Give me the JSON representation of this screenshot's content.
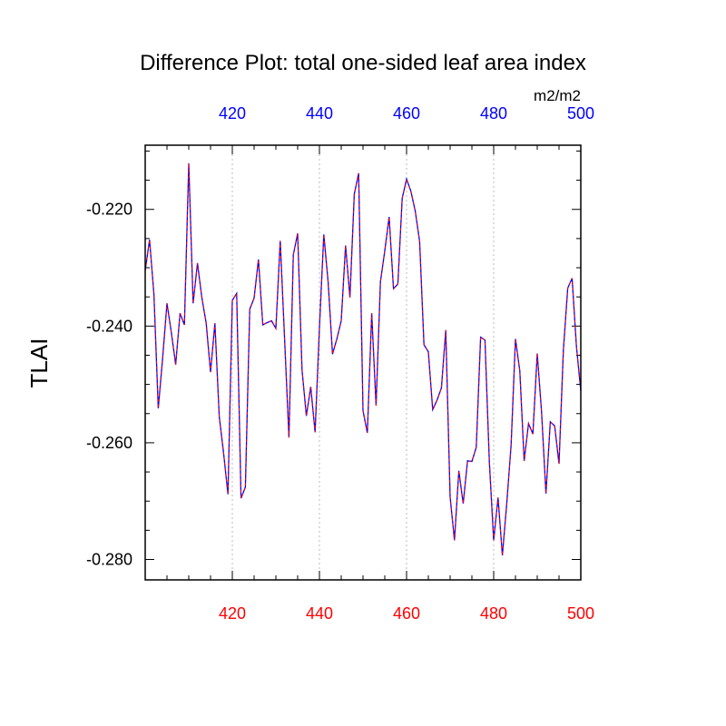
{
  "chart_data": {
    "type": "line",
    "title": "Difference Plot: total one-sided leaf area index",
    "units_label": "m2/m2",
    "ylabel": "TLAI",
    "xlabel": "",
    "xlim": [
      400,
      500
    ],
    "ylim": [
      -0.2835,
      -0.209
    ],
    "x_ticks": [
      420,
      440,
      460,
      480,
      500
    ],
    "x_tick_labels": [
      "420",
      "440",
      "460",
      "480",
      "500"
    ],
    "y_ticks": [
      -0.22,
      -0.24,
      -0.26,
      -0.28
    ],
    "y_tick_labels": [
      "-0.220",
      "-0.240",
      "-0.260",
      "-0.280"
    ],
    "grid": "vertical dotted at major x ticks",
    "colors": {
      "bottom_axis_labels": "#ff0000",
      "top_axis_labels": "#0000ff",
      "line_primary": "#0000ff",
      "line_secondary": "#ff0000",
      "axis": "#000000",
      "grid": "#bbbbbb"
    },
    "series": [
      {
        "x": [
          400,
          401,
          402,
          403,
          404,
          405,
          406,
          407,
          408,
          409,
          410,
          411,
          412,
          413,
          414,
          415,
          416,
          417,
          418,
          419,
          420,
          421,
          422,
          423,
          424,
          425,
          426,
          427,
          428,
          429,
          430,
          431,
          432,
          433,
          434,
          435,
          436,
          437,
          438,
          439,
          440,
          441,
          442,
          443,
          444,
          445,
          446,
          447,
          448,
          449,
          450,
          451,
          452,
          453,
          454,
          455,
          456,
          457,
          458,
          459,
          460,
          461,
          462,
          463,
          464,
          465,
          466,
          467,
          468,
          469,
          470,
          471,
          472,
          473,
          474,
          475,
          476,
          477,
          478,
          479,
          480,
          481,
          482,
          483,
          484,
          485,
          486,
          487,
          488,
          489,
          490,
          491,
          492,
          493,
          494,
          495,
          496,
          497,
          498,
          499,
          500
        ],
        "values": [
          -0.2305,
          -0.2252,
          -0.2345,
          -0.2541,
          -0.2455,
          -0.2361,
          -0.2411,
          -0.2466,
          -0.2378,
          -0.2398,
          -0.2121,
          -0.2361,
          -0.2292,
          -0.2351,
          -0.2395,
          -0.2479,
          -0.2395,
          -0.2555,
          -0.2618,
          -0.2688,
          -0.2356,
          -0.2344,
          -0.2695,
          -0.2676,
          -0.2371,
          -0.2352,
          -0.2286,
          -0.2398,
          -0.2394,
          -0.2391,
          -0.2404,
          -0.2254,
          -0.2422,
          -0.2591,
          -0.2278,
          -0.2241,
          -0.2475,
          -0.2554,
          -0.2504,
          -0.2582,
          -0.2403,
          -0.2243,
          -0.2325,
          -0.2448,
          -0.2422,
          -0.2391,
          -0.2262,
          -0.2351,
          -0.2174,
          -0.2138,
          -0.2545,
          -0.2583,
          -0.2378,
          -0.2536,
          -0.2324,
          -0.2271,
          -0.2213,
          -0.2336,
          -0.2328,
          -0.2181,
          -0.2148,
          -0.2169,
          -0.2203,
          -0.2255,
          -0.2432,
          -0.2444,
          -0.2543,
          -0.2527,
          -0.2506,
          -0.2407,
          -0.2693,
          -0.2767,
          -0.2648,
          -0.2704,
          -0.2631,
          -0.2632,
          -0.2608,
          -0.2419,
          -0.2424,
          -0.2632,
          -0.2767,
          -0.2694,
          -0.2793,
          -0.2704,
          -0.2604,
          -0.2422,
          -0.2477,
          -0.2631,
          -0.2567,
          -0.2585,
          -0.2447,
          -0.2548,
          -0.2687,
          -0.2564,
          -0.2571,
          -0.2636,
          -0.2441,
          -0.2335,
          -0.2318,
          -0.2435,
          -0.2511
        ]
      }
    ]
  }
}
